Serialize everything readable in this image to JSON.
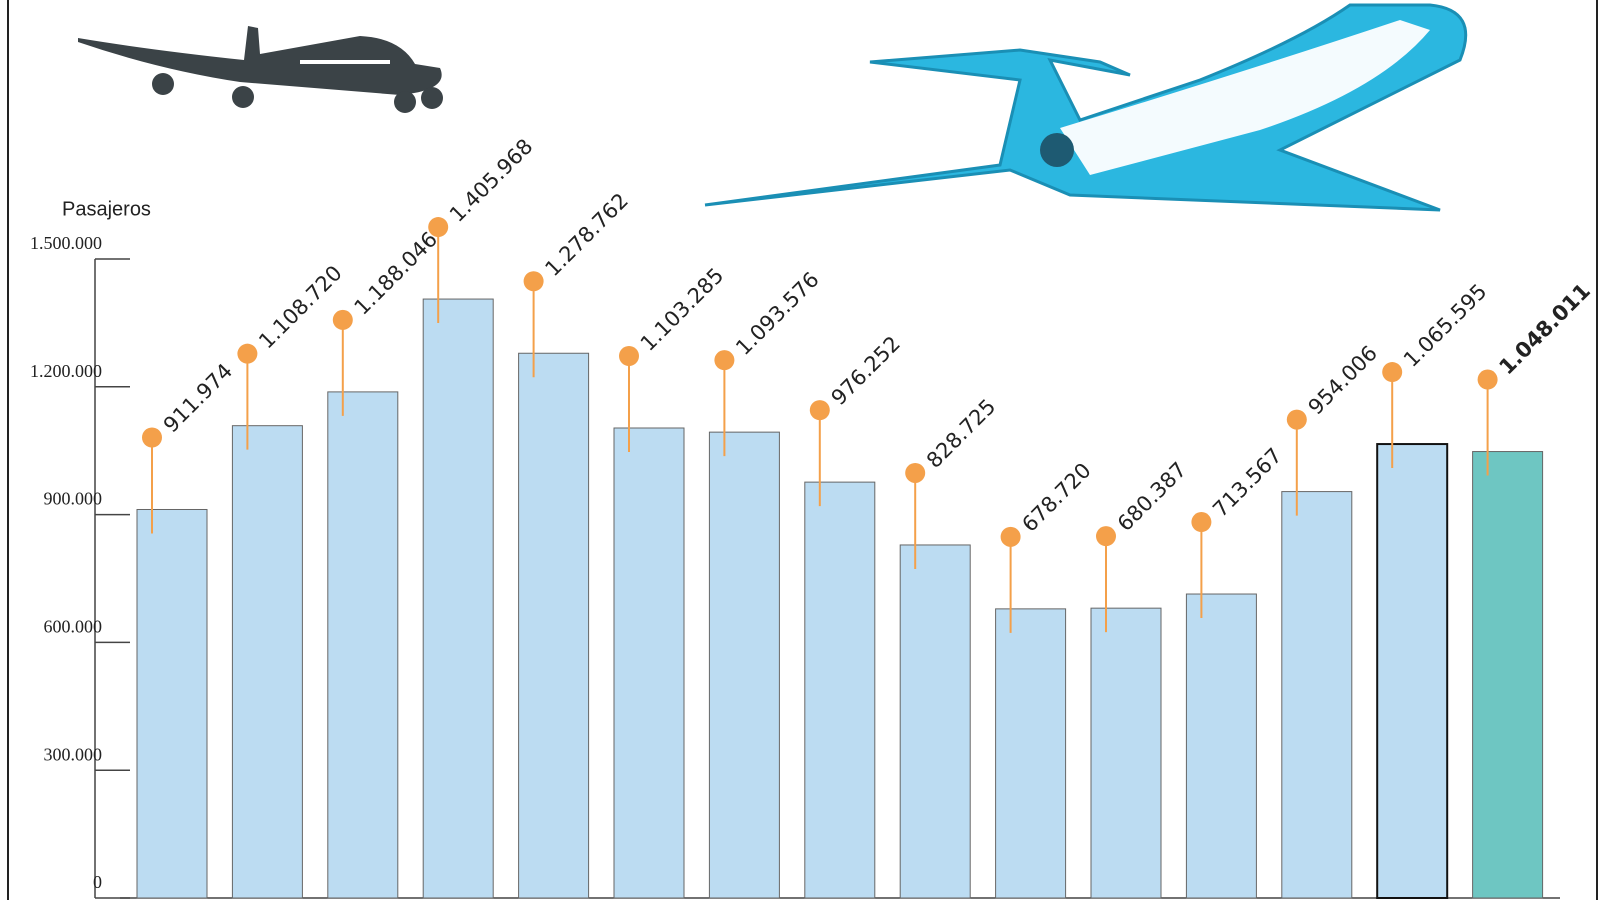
{
  "chart_data": {
    "type": "bar",
    "y_label": "Pasajeros",
    "categories": [
      null,
      null,
      null,
      null,
      null,
      null,
      null,
      null,
      null,
      null,
      null,
      null,
      null,
      null,
      null
    ],
    "values": [
      911974,
      1108720,
      1188046,
      1405968,
      1278762,
      1103285,
      1093576,
      976252,
      828725,
      678720,
      680387,
      713567,
      954006,
      1065595,
      1048011
    ],
    "value_labels": [
      "911.974",
      "1.108.720",
      "1.188.046",
      "1.405.968",
      "1.278.762",
      "1.103.285",
      "1.093.576",
      "976.252",
      "828.725",
      "678.720",
      "680.387",
      "713.567",
      "954.006",
      "1.065.595",
      "1.048.011"
    ],
    "colors": [
      "#bcdcf2",
      "#bcdcf2",
      "#bcdcf2",
      "#bcdcf2",
      "#bcdcf2",
      "#bcdcf2",
      "#bcdcf2",
      "#bcdcf2",
      "#bcdcf2",
      "#bcdcf2",
      "#bcdcf2",
      "#bcdcf2",
      "#bcdcf2",
      "#bcdcf2",
      "#6ec6c2"
    ],
    "marker_color": "#f4a04a",
    "ylim": [
      0,
      1500000
    ],
    "yticks": [
      0,
      {
        "value": 300000,
        "label": "300.000"
      },
      {
        "value": 600000,
        "label": "600.000"
      },
      {
        "value": 900000,
        "label": "900.000"
      },
      {
        "value": 1200000,
        "label": "1.200.000"
      },
      {
        "value": 1500000,
        "label": "1.500.000"
      }
    ]
  }
}
